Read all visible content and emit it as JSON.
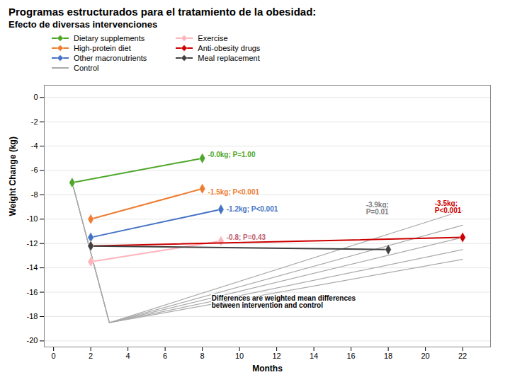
{
  "chart_data": {
    "type": "line",
    "title": "Programas estructurados para el tratamiento de la obesidad:",
    "subtitle": "Efecto de diversas intervenciones",
    "xlabel": "Months",
    "ylabel": "Weight Change (kg)",
    "xlim": [
      -0.5,
      23.5
    ],
    "ylim": [
      -20.5,
      1.0
    ],
    "xticks": [
      0,
      2,
      4,
      6,
      8,
      10,
      12,
      14,
      16,
      18,
      20,
      22
    ],
    "yticks": [
      0,
      -2,
      -4,
      -6,
      -8,
      -10,
      -12,
      -14,
      -16,
      -18,
      -20
    ],
    "grid": "y",
    "legend": "upper left",
    "series": [
      {
        "name": "Dietary supplements",
        "color": "#4EA72A",
        "marker": "diamond",
        "x": [
          1,
          8
        ],
        "values": [
          -7.0,
          -5.0
        ]
      },
      {
        "name": "High-protein diet",
        "color": "#ED7D31",
        "marker": "diamond",
        "x": [
          2,
          8
        ],
        "values": [
          -10.0,
          -7.5
        ]
      },
      {
        "name": "Other macronutrients",
        "color": "#4472C4",
        "marker": "diamond",
        "x": [
          2,
          9
        ],
        "values": [
          -11.5,
          -9.2
        ]
      },
      {
        "name": "Control",
        "color": "#AAAAAA",
        "marker": "none",
        "lines": [
          {
            "x": [
              1,
              3,
              22
            ],
            "values": [
              -7.0,
              -18.5,
              -9.3
            ]
          },
          {
            "x": [
              1,
              3,
              22
            ],
            "values": [
              -7.0,
              -18.5,
              -10.5
            ]
          },
          {
            "x": [
              1,
              3,
              22
            ],
            "values": [
              -7.0,
              -18.5,
              -11.5
            ]
          },
          {
            "x": [
              1,
              3,
              22
            ],
            "values": [
              -7.0,
              -18.5,
              -12.5
            ]
          },
          {
            "x": [
              1,
              3,
              22
            ],
            "values": [
              -7.0,
              -18.5,
              -13.3
            ]
          }
        ]
      },
      {
        "name": "Exercise",
        "color": "#FFB3BA",
        "marker": "diamond",
        "x": [
          2,
          9
        ],
        "values": [
          -13.5,
          -11.8
        ]
      },
      {
        "name": "Anti-obesity drugs",
        "color": "#CC0000",
        "marker": "diamond",
        "x": [
          2,
          22
        ],
        "values": [
          -12.2,
          -11.5
        ]
      },
      {
        "name": "Meal replacement",
        "color": "#404040",
        "marker": "diamond",
        "x": [
          2,
          18
        ],
        "values": [
          -12.2,
          -12.5
        ]
      }
    ],
    "annotations": [
      {
        "text": "-0.0kg; P=1.00",
        "x": 8.3,
        "y": -4.7,
        "color": "#4EA72A"
      },
      {
        "text": "-1.5kg; P<0.001",
        "x": 8.3,
        "y": -7.8,
        "color": "#ED7D31"
      },
      {
        "text": "-1.2kg; P<0.001",
        "x": 9.3,
        "y": -9.2,
        "color": "#4472C4"
      },
      {
        "text": "-0.8; P=0.43",
        "x": 9.3,
        "y": -11.5,
        "color": "#C06070"
      },
      {
        "text": "-3.9kg;\nP=0.01",
        "x": 16.8,
        "y": -9.1,
        "color": "#808080"
      },
      {
        "text": "-3.5kg;\nP<0.001",
        "x": 20.5,
        "y": -9.0,
        "color": "#CC0000"
      },
      {
        "text": "Differences are weighted mean differences\nbetween intervention and control",
        "x": 8.5,
        "y": -16.8,
        "color": "#000000"
      }
    ]
  }
}
